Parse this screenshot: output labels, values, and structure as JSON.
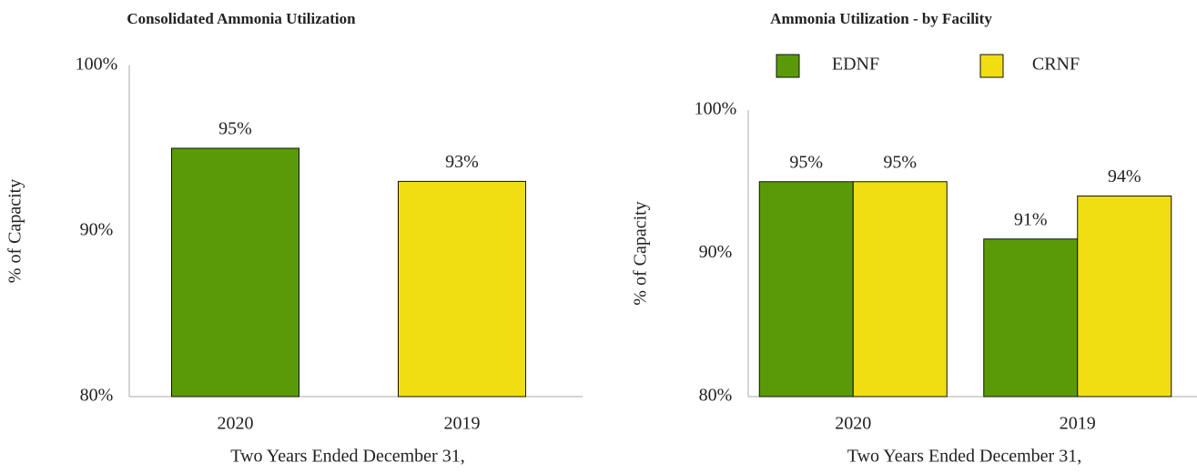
{
  "chart_data": [
    {
      "type": "bar",
      "title": "Consolidated Ammonia Utilization",
      "categories": [
        "2020",
        "2019"
      ],
      "values": [
        95,
        93
      ],
      "value_labels": [
        "95%",
        "93%"
      ],
      "colors": [
        "#5a9a08",
        "#f0de12"
      ],
      "ylim": [
        80,
        100
      ],
      "yticks": [
        {
          "value": 80,
          "label": "80%"
        },
        {
          "value": 90,
          "label": "90%"
        },
        {
          "value": 100,
          "label": "100%"
        }
      ],
      "y_label": "% of Capacity",
      "x_label": "Two Years Ended December 31,"
    },
    {
      "type": "bar",
      "title": "Ammonia Utilization - by Facility",
      "categories": [
        "2020",
        "2019"
      ],
      "series": [
        {
          "name": "EDNF",
          "color": "#5a9a08",
          "values": [
            95,
            91
          ],
          "value_labels": [
            "95%",
            "91%"
          ]
        },
        {
          "name": "CRNF",
          "color": "#f0de12",
          "values": [
            95,
            94
          ],
          "value_labels": [
            "95%",
            "94%"
          ]
        }
      ],
      "ylim": [
        80,
        100
      ],
      "yticks": [
        {
          "value": 80,
          "label": "80%"
        },
        {
          "value": 90,
          "label": "90%"
        },
        {
          "value": 100,
          "label": "100%"
        }
      ],
      "y_label": "% of Capacity",
      "x_label": "Two Years Ended December 31,",
      "legend": "top"
    }
  ]
}
